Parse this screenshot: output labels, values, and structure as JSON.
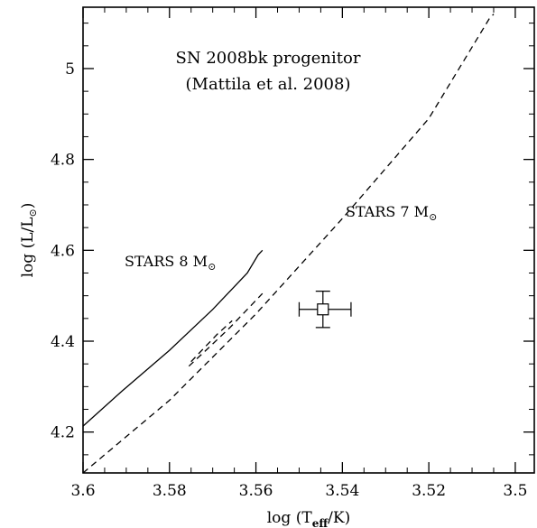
{
  "chart_data": {
    "type": "line",
    "title": "",
    "xlabel": {
      "pre": "log (T",
      "sub": "eff",
      "post": "/K)"
    },
    "ylabel": {
      "pre": "log (L/L",
      "sub": "⊙",
      "post": ")"
    },
    "xlim": [
      3.6,
      3.4956
    ],
    "ylim": [
      4.11,
      5.135
    ],
    "x_reversed": true,
    "grid": false,
    "x_ticks": [
      3.6,
      3.58,
      3.56,
      3.54,
      3.52,
      3.5
    ],
    "x_tick_labels": [
      "3.6",
      "3.58",
      "3.56",
      "3.54",
      "3.52",
      "3.5"
    ],
    "y_ticks": [
      4.2,
      4.4,
      4.6,
      4.8,
      5.0
    ],
    "y_tick_labels": [
      "4.2",
      "4.4",
      "4.6",
      "4.8",
      "5"
    ],
    "annotation": {
      "line1": "SN 2008bk progenitor",
      "line2": "(Mattila et al. 2008)"
    },
    "series": [
      {
        "label": {
          "pre": "STARS 8 M",
          "sub": "⊙"
        },
        "style": "solid",
        "x": [
          3.6,
          3.591,
          3.58,
          3.57,
          3.562,
          3.5595,
          3.5585
        ],
        "y": [
          4.213,
          4.29,
          4.38,
          4.47,
          4.55,
          4.59,
          4.6
        ]
      },
      {
        "label": {
          "pre": "STARS 7 M",
          "sub": "⊙"
        },
        "style": "dashed",
        "x": [
          3.6,
          3.58,
          3.56,
          3.54,
          3.52,
          3.506,
          3.505
        ],
        "y": [
          4.11,
          4.27,
          4.46,
          4.67,
          4.89,
          5.11,
          5.12
        ]
      },
      {
        "label": null,
        "style": "dashed",
        "x": [
          3.5755,
          3.571,
          3.566,
          3.562,
          3.5585
        ],
        "y": [
          4.345,
          4.385,
          4.43,
          4.47,
          4.505
        ]
      },
      {
        "label": null,
        "style": "dashed",
        "x": [
          3.575,
          3.5725,
          3.569,
          3.5655
        ],
        "y": [
          4.355,
          4.38,
          4.415,
          4.445
        ]
      }
    ],
    "points": [
      {
        "x": 3.5445,
        "y": 4.47,
        "x_err": [
          0.0055,
          0.0065
        ],
        "y_err": [
          0.04,
          0.04
        ],
        "marker": "open-square"
      }
    ]
  }
}
